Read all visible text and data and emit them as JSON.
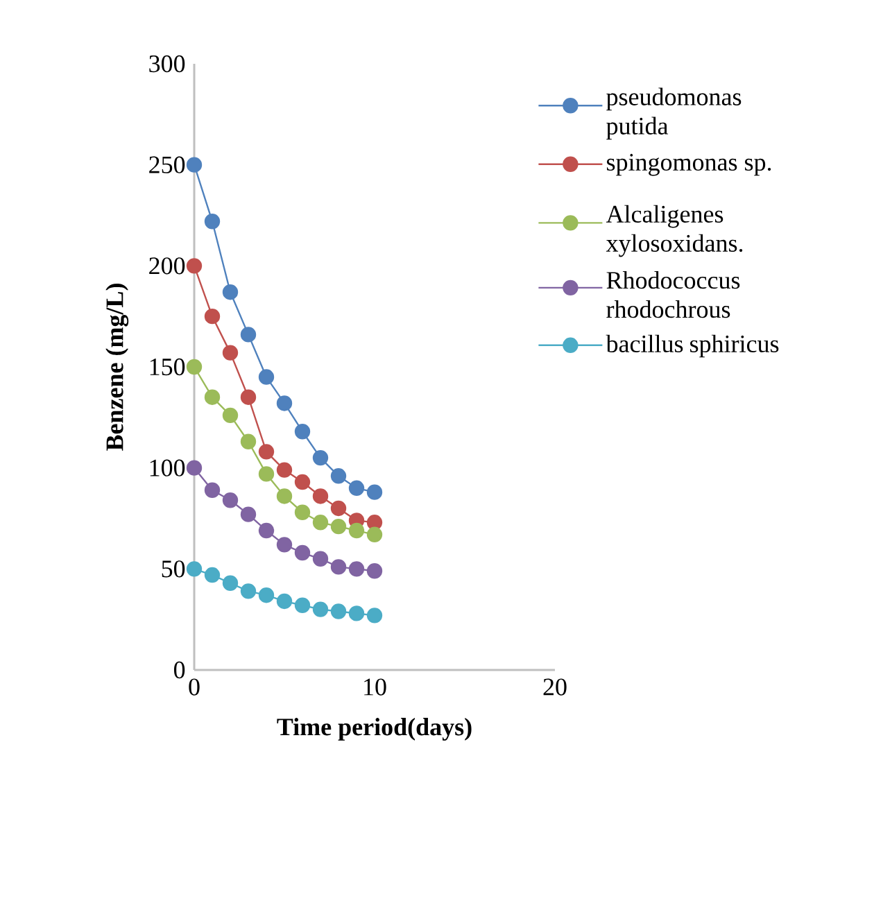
{
  "chart_data": {
    "type": "line",
    "xlabel": "Time period(days)",
    "ylabel": "Benzene (mg/L)",
    "x": [
      0,
      1,
      2,
      3,
      4,
      5,
      6,
      7,
      8,
      9,
      10
    ],
    "series": [
      {
        "name": "pseudomonas putida",
        "color": "#4f81bd",
        "values": [
          250,
          222,
          187,
          166,
          145,
          132,
          118,
          105,
          96,
          90,
          88
        ]
      },
      {
        "name": "spingomonas sp.",
        "color": "#c0504d",
        "values": [
          200,
          175,
          157,
          135,
          108,
          99,
          93,
          86,
          80,
          74,
          73
        ]
      },
      {
        "name": "Alcaligenes xylosoxidans.",
        "color": "#9bbb59",
        "values": [
          150,
          135,
          126,
          113,
          97,
          86,
          78,
          73,
          71,
          69,
          67
        ]
      },
      {
        "name": "Rhodococcus rhodochrous",
        "color": "#8064a2",
        "values": [
          100,
          89,
          84,
          77,
          69,
          62,
          58,
          55,
          51,
          50,
          49
        ]
      },
      {
        "name": "bacillus sphiricus",
        "color": "#4bacc6",
        "values": [
          50,
          47,
          43,
          39,
          37,
          34,
          32,
          30,
          29,
          28,
          27
        ]
      }
    ],
    "xlim": [
      0,
      20
    ],
    "xticks": [
      0,
      10,
      20
    ],
    "ylim": [
      0,
      300
    ],
    "yticks": [
      0,
      50,
      100,
      150,
      200,
      250,
      300
    ],
    "legend": "right",
    "marker": "circle",
    "grid": false
  }
}
